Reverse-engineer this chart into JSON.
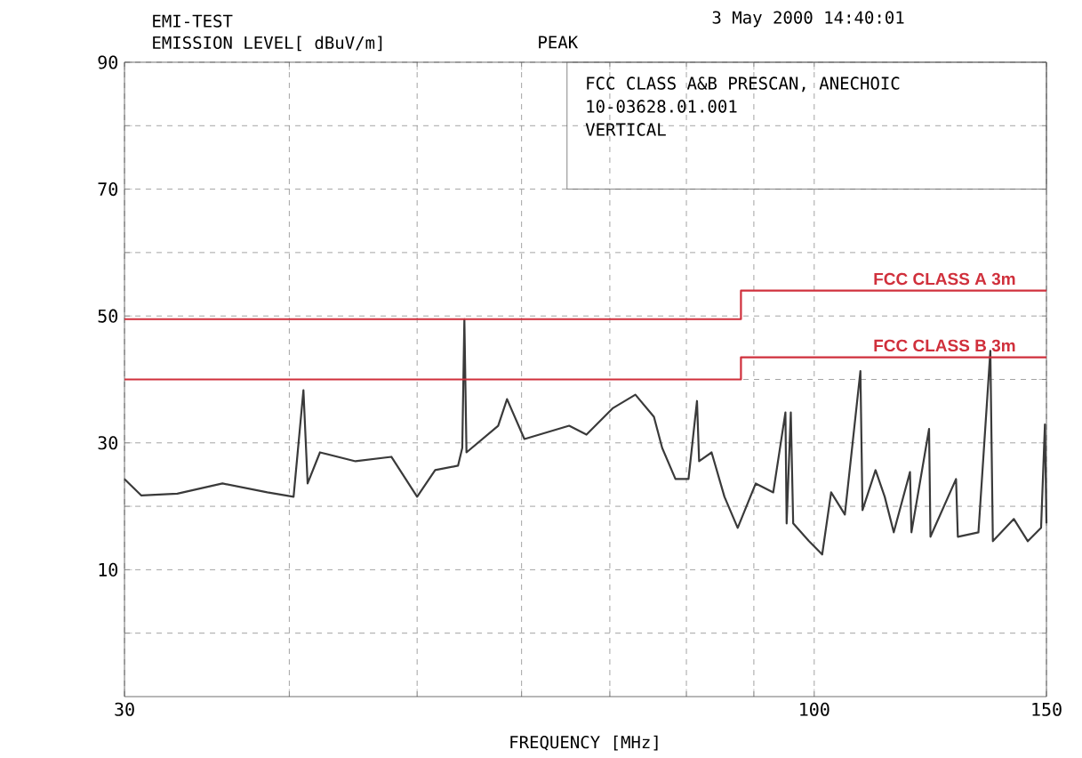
{
  "chart_data": {
    "type": "line",
    "title": "EMI-TEST",
    "subtitle": "PEAK",
    "ylabel": "EMISSION LEVEL[ dBuV/m]",
    "xlabel": "FREQUENCY [MHz]",
    "annotations": [
      "3 May 2000  14:40:01",
      "FCC CLASS A&B PRESCAN, ANECHOIC",
      "10-03628.01.001",
      "VERTICAL"
    ],
    "log": "x",
    "grid": true,
    "legend": false,
    "xlim": [
      30,
      150
    ],
    "ylim": [
      -10,
      90
    ],
    "xticks": [
      30,
      {
        "value": 40,
        "label": null
      },
      {
        "value": 50,
        "label": null
      },
      {
        "value": 60,
        "label": null
      },
      {
        "value": 70,
        "label": null
      },
      {
        "value": 80,
        "label": null
      },
      {
        "value": 90,
        "label": null
      },
      100,
      150
    ],
    "yticks": [
      {
        "value": 0,
        "label": null
      },
      10,
      {
        "value": 20,
        "label": null
      },
      30,
      {
        "value": 40,
        "label": null
      },
      50,
      {
        "value": 60,
        "label": null
      },
      70,
      {
        "value": 80,
        "label": null
      },
      90
    ],
    "series": [
      {
        "color": "#3a3a3a",
        "x": [
          30,
          30.9,
          32.9,
          35.6,
          38.5,
          40.3,
          41.0,
          41.3,
          42.2,
          44.9,
          47.8,
          50.0,
          51.6,
          53.7,
          54.1,
          54.3,
          54.5,
          57.6,
          58.5,
          60.3,
          65.2,
          67.2,
          70.4,
          73.2,
          75.6,
          76.7,
          78.5,
          80.3,
          81.5,
          81.8,
          83.6,
          85.5,
          87.5,
          90.3,
          93.1,
          95.1,
          95.3,
          96.0,
          96.4,
          99.1,
          101.4,
          103.0,
          105.5,
          108.4,
          108.8,
          111.3,
          113.1,
          114.9,
          118.2,
          118.5,
          122.2,
          122.5,
          128.1,
          128.5,
          133.2,
          136.0,
          136.6,
          141.7,
          145.2,
          148.6,
          149.6,
          150
        ],
        "values": [
          24.3,
          21.7,
          22,
          23.6,
          22.2,
          21.5,
          38.3,
          23.6,
          28.5,
          27.1,
          27.8,
          21.5,
          25.7,
          26.4,
          29.2,
          49.5,
          28.5,
          32.7,
          36.9,
          30.6,
          32.7,
          31.3,
          35.5,
          37.6,
          34.1,
          29.2,
          24.3,
          24.3,
          36.6,
          27.1,
          28.5,
          21.5,
          16.6,
          23.6,
          22.2,
          34.8,
          17.3,
          34.8,
          17.3,
          14.5,
          12.4,
          22.2,
          18.7,
          41.3,
          19.4,
          25.7,
          21.5,
          15.9,
          25.4,
          15.9,
          32.2,
          15.2,
          24.3,
          15.2,
          15.9,
          44.5,
          14.5,
          18,
          14.5,
          16.6,
          32.9,
          17.3
        ]
      },
      {
        "name": "FCC CLASS A  3m",
        "color": "#d0303c",
        "x": [
          30,
          88,
          88,
          150
        ],
        "values": [
          49.5,
          49.5,
          54,
          54
        ]
      },
      {
        "name": "FCC CLASS B  3m",
        "color": "#d0303c",
        "x": [
          30,
          88,
          88,
          150
        ],
        "values": [
          40,
          40,
          43.5,
          43.5
        ]
      }
    ]
  }
}
